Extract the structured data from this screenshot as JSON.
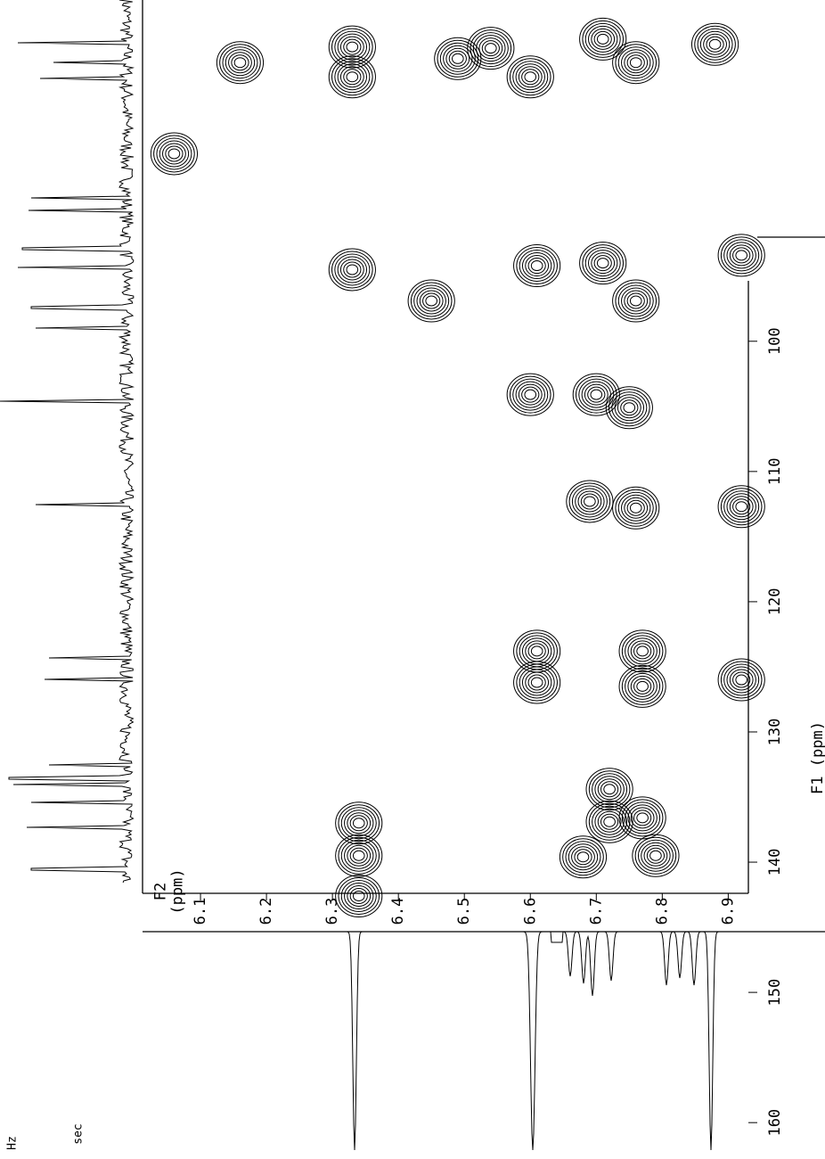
{
  "chart_data": {
    "type": "contour",
    "x_label": "F2\n(ppm)",
    "y_label": "F1 (ppm)",
    "corner_labels": [
      "Hz",
      "sec"
    ],
    "color": "#000000",
    "xlim": [
      6.0,
      6.94
    ],
    "ylim": [
      74,
      163
    ],
    "xticks": [
      6.1,
      6.2,
      6.3,
      6.4,
      6.5,
      6.6,
      6.7,
      6.8,
      6.9
    ],
    "yticks": [
      100,
      110,
      120,
      130,
      140,
      150,
      160
    ],
    "x": [
      6.16,
      6.33,
      6.33,
      6.49,
      6.54,
      6.6,
      6.71,
      6.76,
      6.88,
      6.06,
      6.33,
      6.45,
      6.61,
      6.71,
      6.76,
      6.92,
      6.6,
      6.7,
      6.75,
      6.69,
      6.76,
      6.92,
      6.61,
      6.61,
      6.77,
      6.77,
      6.92,
      6.34,
      6.34,
      6.34,
      6.72,
      6.77,
      6.68,
      6.79,
      6.72
    ],
    "values": [
      78.6,
      79.7,
      77.4,
      78.3,
      77.5,
      79.7,
      76.8,
      78.6,
      77.2,
      85.6,
      94.5,
      96.9,
      94.2,
      94.0,
      96.9,
      93.4,
      104.1,
      104.1,
      105.1,
      112.3,
      112.8,
      112.7,
      123.8,
      126.2,
      123.8,
      126.5,
      126.0,
      137.0,
      139.5,
      142.6,
      136.9,
      136.6,
      139.6,
      139.5,
      134.4
    ]
  }
}
